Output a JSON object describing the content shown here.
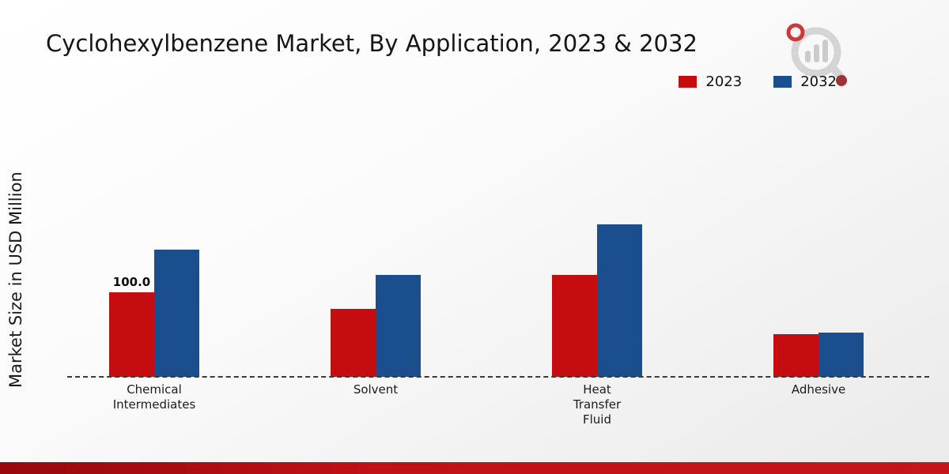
{
  "page": {
    "brand_logo_icon": "magnifier-bar-chart-logo"
  },
  "chart_data": {
    "type": "bar",
    "title": "Cyclohexylbenzene Market, By Application, 2023 & 2032",
    "xlabel": "",
    "ylabel": "Market Size in USD Million",
    "categories": [
      "Chemical\nIntermediates",
      "Solvent",
      "Heat\nTransfer\nFluid",
      "Adhesive"
    ],
    "series": [
      {
        "name": "2023",
        "color": "#c50c0f",
        "values": [
          100.0,
          80.0,
          120.0,
          50.0
        ]
      },
      {
        "name": "2032",
        "color": "#1a4e8c",
        "values": [
          150.0,
          120.0,
          180.0,
          52.0
        ]
      }
    ],
    "annotations": [
      {
        "series_index": 0,
        "category_index": 0,
        "text": "100.0"
      }
    ],
    "ylim": [
      0,
      200
    ],
    "grid": false,
    "legend_position": "top-right",
    "baseline_style": "dashed"
  },
  "colors": {
    "series_2023": "#c50c0f",
    "series_2032": "#1a4e8c",
    "footer_accent": "#c01116",
    "background_top": "#ffffff",
    "background_bottom": "#eaeaea"
  }
}
